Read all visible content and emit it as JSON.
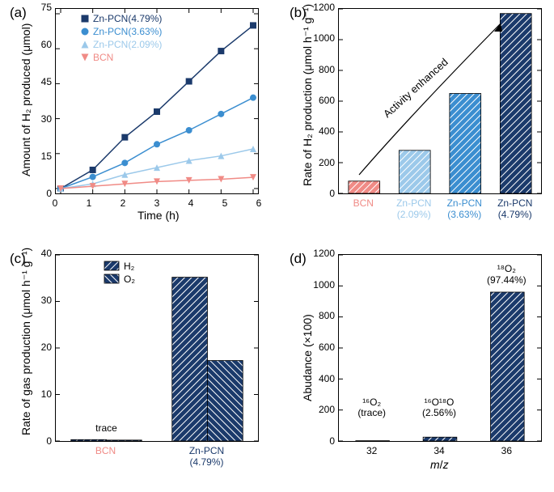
{
  "panels": {
    "a": {
      "label": "(a)",
      "xlabel": "Time (h)",
      "ylabel": "Amount of H₂ produced (μmol)",
      "xlim": [
        0,
        6
      ],
      "xtick_step": 1,
      "ylim": [
        0,
        75
      ],
      "ytick_step": 15,
      "background_color": "#ffffff",
      "border_color": "#000000",
      "legend": [
        {
          "label": "Zn-PCN(4.79%)",
          "marker": "square",
          "color": "#1b3a6b"
        },
        {
          "label": "Zn-PCN(3.63%)",
          "marker": "circle",
          "color": "#3b8ed0"
        },
        {
          "label": "Zn-PCN(2.09%)",
          "marker": "triangle-up",
          "color": "#9cc9ea"
        },
        {
          "label": "BCN",
          "marker": "triangle-down",
          "color": "#f08b86"
        }
      ],
      "x": [
        0,
        1,
        2,
        3,
        4,
        5,
        6
      ],
      "series": [
        {
          "name": "Zn-PCN(4.79%)",
          "color": "#1b3a6b",
          "marker": "square",
          "y": [
            0,
            8,
            22,
            33,
            46,
            59,
            70
          ],
          "linewidth": 1.5
        },
        {
          "name": "Zn-PCN(3.63%)",
          "color": "#3b8ed0",
          "marker": "circle",
          "y": [
            0,
            5,
            11,
            19,
            25,
            32,
            39
          ],
          "linewidth": 1.5
        },
        {
          "name": "Zn-PCN(2.09%)",
          "color": "#9cc9ea",
          "marker": "triangle-up",
          "y": [
            0,
            2,
            6,
            9,
            12,
            14,
            17
          ],
          "linewidth": 1.5
        },
        {
          "name": "BCN",
          "color": "#f08b86",
          "marker": "triangle-down",
          "y": [
            0,
            1,
            2,
            3,
            3.5,
            4,
            4.8
          ],
          "linewidth": 1.5
        }
      ],
      "marker_size": 8
    },
    "b": {
      "label": "(b)",
      "xlabel": "",
      "ylabel": "Rate of H₂ production (μmol h⁻¹ g⁻¹)",
      "ylim": [
        0,
        1200
      ],
      "ytick_step": 200,
      "background_color": "#ffffff",
      "border_color": "#000000",
      "annotation": "Activity enhanced",
      "categories": [
        {
          "label1": "BCN",
          "label2": "",
          "color_label": "#f08b86"
        },
        {
          "label1": "Zn-PCN",
          "label2": "(2.09%)",
          "color_label": "#9cc9ea"
        },
        {
          "label1": "Zn-PCN",
          "label2": "(3.63%)",
          "color_label": "#3b8ed0"
        },
        {
          "label1": "Zn-PCN",
          "label2": "(4.79%)",
          "color_label": "#1b3a6b"
        }
      ],
      "values": [
        80,
        280,
        650,
        1170
      ],
      "bar_colors": [
        "#f08b86",
        "#9cc9ea",
        "#3b8ed0",
        "#1b3a6b"
      ],
      "bar_width": 0.62,
      "hatch_color": "#ffffff",
      "border_stroke": "#000000"
    },
    "c": {
      "label": "(c)",
      "xlabel": "",
      "ylabel": "Rate of gas production (μmol h⁻¹ g⁻¹)",
      "ylim": [
        0,
        40
      ],
      "ytick_step": 10,
      "background_color": "#ffffff",
      "border_color": "#000000",
      "legend": [
        {
          "label": "H₂",
          "hatch": "diag-right",
          "color": "#1b3a6b"
        },
        {
          "label": "O₂",
          "hatch": "diag-left",
          "color": "#1b3a6b"
        }
      ],
      "groups": [
        {
          "label1": "BCN",
          "label2": "",
          "color_label": "#f08b86",
          "h2": 0.3,
          "o2": 0.2
        },
        {
          "label1": "Zn-PCN",
          "label2": "(4.79%)",
          "color_label": "#1b3a6b",
          "h2": 35.2,
          "o2": 17.3
        }
      ],
      "annotation_trace": "trace",
      "bar_color": "#1b3a6b",
      "bar_width": 0.35,
      "hatch_color": "#ffffff",
      "border_stroke": "#000000"
    },
    "d": {
      "label": "(d)",
      "xlabel_html": "<span style=\"font-style:italic\">m</span>/<span style=\"font-style:italic\">z</span>",
      "ylabel": "Abudance (×100)",
      "ylim": [
        0,
        1200
      ],
      "ytick_step": 200,
      "background_color": "#ffffff",
      "border_color": "#000000",
      "categories": [
        "32",
        "34",
        "36"
      ],
      "values": [
        2,
        25,
        960
      ],
      "bar_color": "#1b3a6b",
      "bar_width": 0.5,
      "hatch_color": "#ffffff",
      "border_stroke": "#000000",
      "annotations": [
        {
          "top": "¹⁶O₂",
          "bottom": "(trace)"
        },
        {
          "top": "¹⁶O¹⁸O",
          "bottom": "(2.56%)"
        },
        {
          "top": "¹⁸O₂",
          "bottom": "(97.44%)"
        }
      ]
    }
  }
}
